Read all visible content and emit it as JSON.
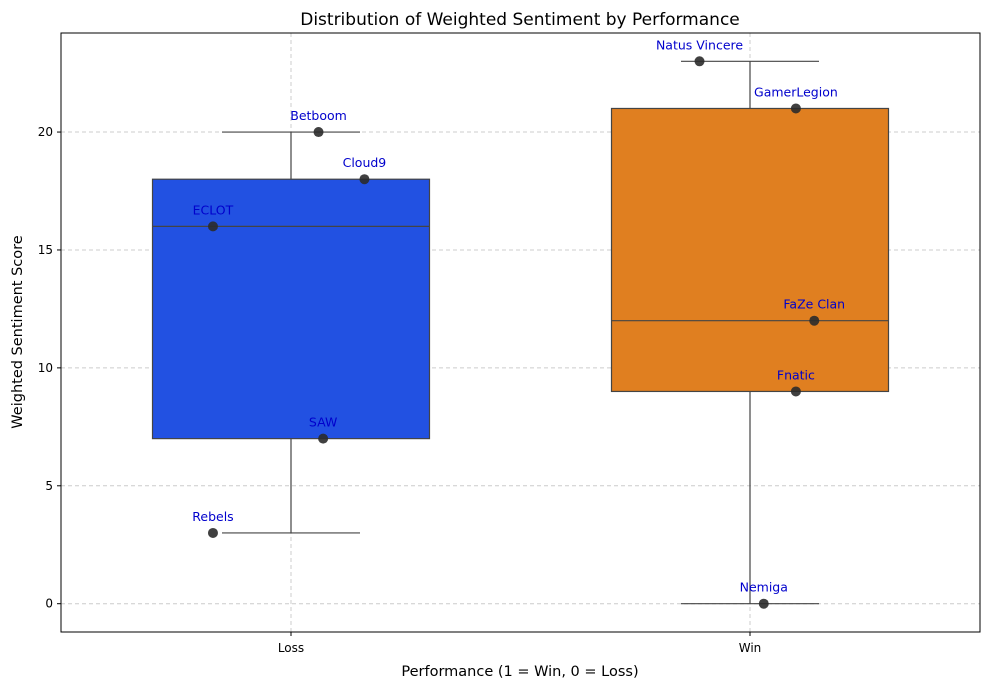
{
  "chart_data": {
    "type": "box",
    "title": "Distribution of Weighted Sentiment by Performance",
    "xlabel": "Performance (1 = Win, 0 = Loss)",
    "ylabel": "Weighted Sentiment Score",
    "ylim": [
      -1.2,
      24.2
    ],
    "yticks": [
      0,
      5,
      10,
      15,
      20
    ],
    "grid": true,
    "categories": [
      "Loss",
      "Win"
    ],
    "colors": {
      "Loss": "#2251e2",
      "Win": "#e07f20"
    },
    "boxes": [
      {
        "category": "Loss",
        "whisker_low": 3,
        "q1": 7,
        "median": 16,
        "q3": 18,
        "whisker_high": 20
      },
      {
        "category": "Win",
        "whisker_low": 0,
        "q1": 9,
        "median": 12,
        "q3": 21,
        "whisker_high": 23
      }
    ],
    "points": [
      {
        "category": "Loss",
        "team": "Betboom",
        "value": 20,
        "jitter": 0.06
      },
      {
        "category": "Loss",
        "team": "Cloud9",
        "value": 18,
        "jitter": 0.16
      },
      {
        "category": "Loss",
        "team": "ECLOT",
        "value": 16,
        "jitter": -0.17
      },
      {
        "category": "Loss",
        "team": "SAW",
        "value": 7,
        "jitter": 0.07
      },
      {
        "category": "Loss",
        "team": "Rebels",
        "value": 3,
        "jitter": -0.17
      },
      {
        "category": "Win",
        "team": "Natus Vincere",
        "value": 23,
        "jitter": -0.11
      },
      {
        "category": "Win",
        "team": "GamerLegion",
        "value": 21,
        "jitter": 0.1
      },
      {
        "category": "Win",
        "team": "FaZe Clan",
        "value": 12,
        "jitter": 0.14
      },
      {
        "category": "Win",
        "team": "Fnatic",
        "value": 9,
        "jitter": 0.1
      },
      {
        "category": "Win",
        "team": "Nemiga",
        "value": 0,
        "jitter": 0.03
      }
    ]
  }
}
